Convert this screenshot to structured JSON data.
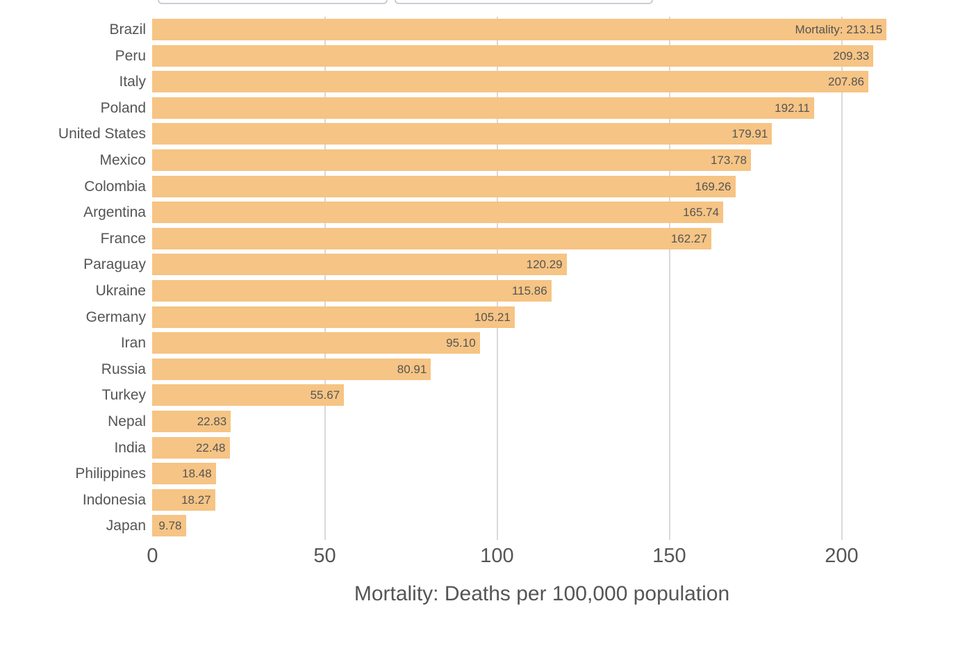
{
  "toolbar": {
    "input1_value": "",
    "input2_value": ""
  },
  "chart_data": {
    "type": "bar",
    "orientation": "horizontal",
    "title": "",
    "xlabel": "Mortality: Deaths per 100,000 population",
    "ylabel": "",
    "categories": [
      "Brazil",
      "Peru",
      "Italy",
      "Poland",
      "United States",
      "Mexico",
      "Colombia",
      "Argentina",
      "France",
      "Paraguay",
      "Ukraine",
      "Germany",
      "Iran",
      "Russia",
      "Turkey",
      "Nepal",
      "India",
      "Philippines",
      "Indonesia",
      "Japan"
    ],
    "values": [
      213.15,
      209.33,
      207.86,
      192.11,
      179.91,
      173.78,
      169.26,
      165.74,
      162.27,
      120.29,
      115.86,
      105.21,
      95.1,
      80.91,
      55.67,
      22.83,
      22.48,
      18.48,
      18.27,
      9.78
    ],
    "bar_labels": [
      "Mortality: 213.15",
      "209.33",
      "207.86",
      "192.11",
      "179.91",
      "173.78",
      "169.26",
      "165.74",
      "162.27",
      "120.29",
      "115.86",
      "105.21",
      "95.10",
      "80.91",
      "55.67",
      "22.83",
      "22.48",
      "18.48",
      "18.27",
      "9.78"
    ],
    "x_ticks": [
      0,
      50,
      100,
      150,
      200
    ],
    "xlim": [
      0,
      226
    ],
    "grid": true,
    "legend": false,
    "bar_color": "#f6c484",
    "text_color": "#555555",
    "grid_color": "#d9d9d9"
  }
}
